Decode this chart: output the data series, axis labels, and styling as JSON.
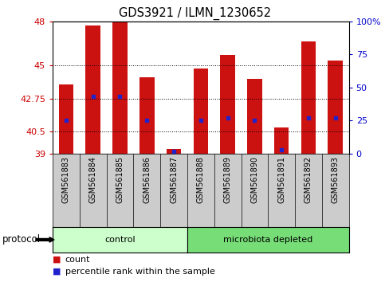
{
  "title": "GDS3921 / ILMN_1230652",
  "samples": [
    "GSM561883",
    "GSM561884",
    "GSM561885",
    "GSM561886",
    "GSM561887",
    "GSM561888",
    "GSM561889",
    "GSM561890",
    "GSM561891",
    "GSM561892",
    "GSM561893"
  ],
  "counts": [
    43.7,
    47.7,
    48.0,
    44.2,
    39.3,
    44.8,
    45.7,
    44.1,
    40.8,
    46.6,
    45.3
  ],
  "percentiles": [
    25,
    43,
    43,
    25,
    2,
    25,
    27,
    25,
    3,
    27,
    27
  ],
  "ymin": 39,
  "ymax": 48,
  "yticks": [
    39,
    40.5,
    42.75,
    45,
    48
  ],
  "right_yticks": [
    0,
    25,
    50,
    75,
    100
  ],
  "right_ylabels": [
    "0",
    "25",
    "50",
    "75",
    "100%"
  ],
  "bar_color": "#cc1111",
  "marker_color": "#2222cc",
  "bar_width": 0.55,
  "control_samples": 5,
  "control_label": "control",
  "microbiota_label": "microbiota depleted",
  "protocol_label": "protocol",
  "legend_count_label": "count",
  "legend_percentile_label": "percentile rank within the sample",
  "control_color": "#ccffcc",
  "microbiota_color": "#77dd77",
  "sample_box_color": "#cccccc",
  "tick_label_color_left": "#cc0000",
  "tick_label_color_right": "#0000cc",
  "background_color": "#ffffff",
  "plot_bg_color": "#ffffff",
  "title_fontsize": 10.5,
  "axis_fontsize": 8,
  "sample_fontsize": 7,
  "group_fontsize": 8,
  "legend_fontsize": 8
}
